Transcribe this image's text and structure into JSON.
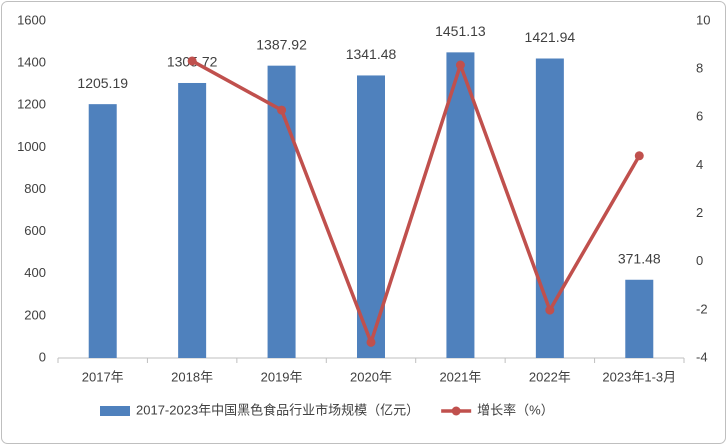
{
  "chart_data": {
    "type": "bar-line",
    "categories": [
      "2017年",
      "2018年",
      "2019年",
      "2020年",
      "2021年",
      "2022年",
      "2023年1-3月"
    ],
    "series": [
      {
        "name": "2017-2023年中国黑色食品行业市场规模（亿元）",
        "type": "bar",
        "color": "#4f81bd",
        "values": [
          1205.19,
          1305.72,
          1387.92,
          1341.48,
          1451.13,
          1421.94,
          371.48
        ]
      },
      {
        "name": "增长率（%）",
        "type": "line",
        "axis": "y2",
        "color": "#c0504d",
        "values": [
          null,
          8.34,
          6.3,
          -3.35,
          8.17,
          -2.01,
          4.4
        ]
      }
    ],
    "ylim": [
      0,
      1600
    ],
    "yticks": [
      0,
      200,
      400,
      600,
      800,
      1000,
      1200,
      1400,
      1600
    ],
    "y2lim": [
      -4,
      10
    ],
    "y2ticks": [
      -4,
      -2,
      0,
      2,
      4,
      6,
      8,
      10
    ],
    "grid": false,
    "legend": "bottom"
  }
}
